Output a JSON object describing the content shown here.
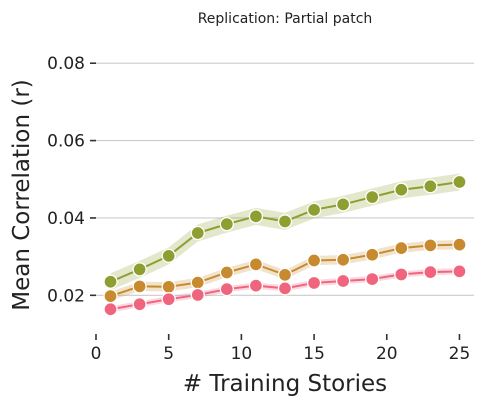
{
  "chart_data": {
    "type": "line",
    "title": "Replication: Partial patch",
    "xlabel": "# Training Stories",
    "ylabel": "Mean Correlation (r)",
    "xlim": [
      0,
      26
    ],
    "ylim": [
      0.01,
      0.086
    ],
    "xticks": [
      0,
      5,
      10,
      15,
      20,
      25
    ],
    "xtick_labels": [
      "0",
      "5",
      "10",
      "15",
      "20",
      "25"
    ],
    "yticks": [
      0.02,
      0.04,
      0.06,
      0.08
    ],
    "ytick_labels": [
      "0.02",
      "0.04",
      "0.06",
      "0.08"
    ],
    "grid": "horizontal",
    "x": [
      1,
      3,
      5,
      7,
      9,
      11,
      13,
      15,
      17,
      19,
      21,
      23,
      25
    ],
    "series": [
      {
        "color": "#8f9e30",
        "values": [
          0.0235,
          0.0267,
          0.0302,
          0.0361,
          0.0384,
          0.0404,
          0.0391,
          0.0421,
          0.0435,
          0.0454,
          0.0473,
          0.0482,
          0.0493
        ],
        "band": 0.0022
      },
      {
        "color": "#c88a2e",
        "values": [
          0.0198,
          0.0223,
          0.0222,
          0.0233,
          0.0259,
          0.028,
          0.0253,
          0.029,
          0.0292,
          0.0305,
          0.0322,
          0.0329,
          0.0331
        ],
        "band": 0.0012
      },
      {
        "color": "#f0657e",
        "values": [
          0.0164,
          0.0177,
          0.019,
          0.0201,
          0.0216,
          0.0225,
          0.0218,
          0.0232,
          0.0237,
          0.0242,
          0.0254,
          0.026,
          0.0262
        ],
        "band": 0.0008
      }
    ]
  }
}
